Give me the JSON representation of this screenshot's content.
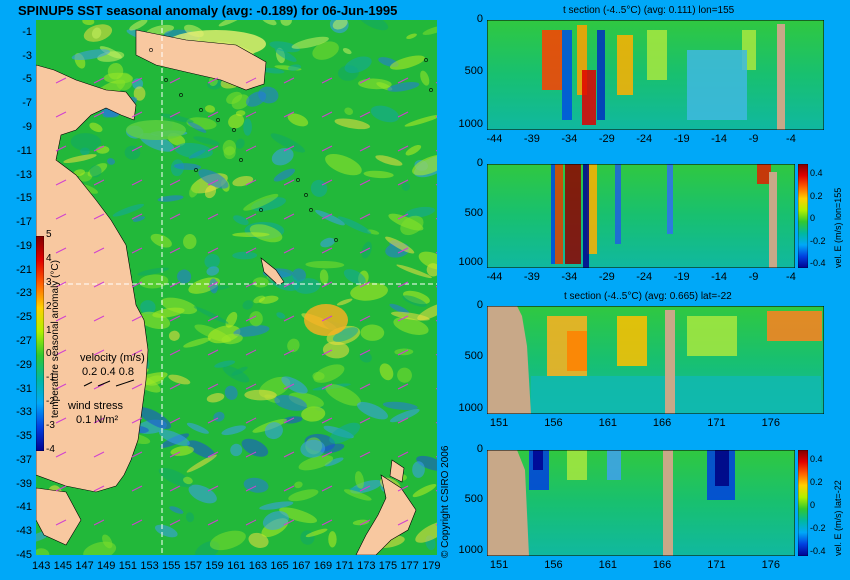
{
  "map": {
    "title": "SPINUP5 SST seasonal anomaly (avg: -0.189) for 06-Jun-1995",
    "lat_ticks": [
      "-1",
      "-3",
      "-5",
      "-7",
      "-9",
      "-11",
      "-13",
      "-15",
      "-17",
      "-19",
      "-21",
      "-23",
      "-25",
      "-27",
      "-29",
      "-31",
      "-33",
      "-35",
      "-37",
      "-39",
      "-41",
      "-43",
      "-45"
    ],
    "lon_ticks": [
      "143",
      "145",
      "147",
      "149",
      "151",
      "153",
      "155",
      "157",
      "159",
      "161",
      "163",
      "165",
      "167",
      "169",
      "171",
      "173",
      "175",
      "177",
      "179"
    ],
    "colorbar_ticks": [
      "5",
      "4",
      "3",
      "2",
      "1",
      "0",
      "-1",
      "-2",
      "-3",
      "-4"
    ],
    "colorbar_label": "temperature seasonal anomaly (°C)",
    "velocity_label": "velocity (m/s)",
    "velocity_scale": "0.2 0.4 0.8",
    "wind_label": "wind stress",
    "wind_scale": "0.1 N/m²",
    "copyright": "© Copyright CSIRO 2006"
  },
  "chart_data": [
    {
      "type": "heatmap",
      "title": "SPINUP5 SST seasonal anomaly (avg: -0.189) for 06-Jun-1995",
      "x_ticks": [
        143,
        145,
        147,
        149,
        151,
        153,
        155,
        157,
        159,
        161,
        163,
        165,
        167,
        169,
        171,
        173,
        175,
        177,
        179
      ],
      "y_ticks": [
        -1,
        -3,
        -5,
        -7,
        -9,
        -11,
        -13,
        -15,
        -17,
        -19,
        -21,
        -23,
        -25,
        -27,
        -29,
        -31,
        -33,
        -35,
        -37,
        -39,
        -41,
        -43,
        -45
      ],
      "xlim": [
        143,
        180
      ],
      "ylim": [
        -45,
        0
      ],
      "colorbar_range": [
        -4,
        5
      ],
      "crosshair": {
        "lon": 155,
        "lat": -22
      }
    },
    {
      "type": "heatmap",
      "title": "t section (-4..5°C) (avg: 0.111) lon=155",
      "x_ticks": [
        -44,
        -39,
        -34,
        -29,
        -24,
        -19,
        -14,
        -9,
        -4
      ],
      "y_ticks": [
        0,
        500,
        1000
      ]
    },
    {
      "type": "heatmap",
      "title": "",
      "x_ticks": [
        -44,
        -39,
        -34,
        -29,
        -24,
        -19,
        -14,
        -9,
        -4
      ],
      "y_ticks": [
        0,
        500,
        1000
      ],
      "colorbar_ticks": [
        "0.4",
        "0.2",
        "0",
        "-0.2",
        "-0.4"
      ],
      "colorbar_label": "vel. E (m/s) lon=155"
    },
    {
      "type": "heatmap",
      "title": "t section (-4..5°C) (avg: 0.665) lat=-22",
      "x_ticks": [
        151,
        156,
        161,
        166,
        171,
        176
      ],
      "y_ticks": [
        0,
        500,
        1000
      ]
    },
    {
      "type": "heatmap",
      "title": "",
      "x_ticks": [
        151,
        156,
        161,
        166,
        171,
        176
      ],
      "y_ticks": [
        0,
        500,
        1000
      ],
      "colorbar_ticks": [
        "0.4",
        "0.2",
        "0",
        "-0.2",
        "-0.4"
      ],
      "colorbar_label": "vel. E (m/s) lat=-22"
    }
  ]
}
